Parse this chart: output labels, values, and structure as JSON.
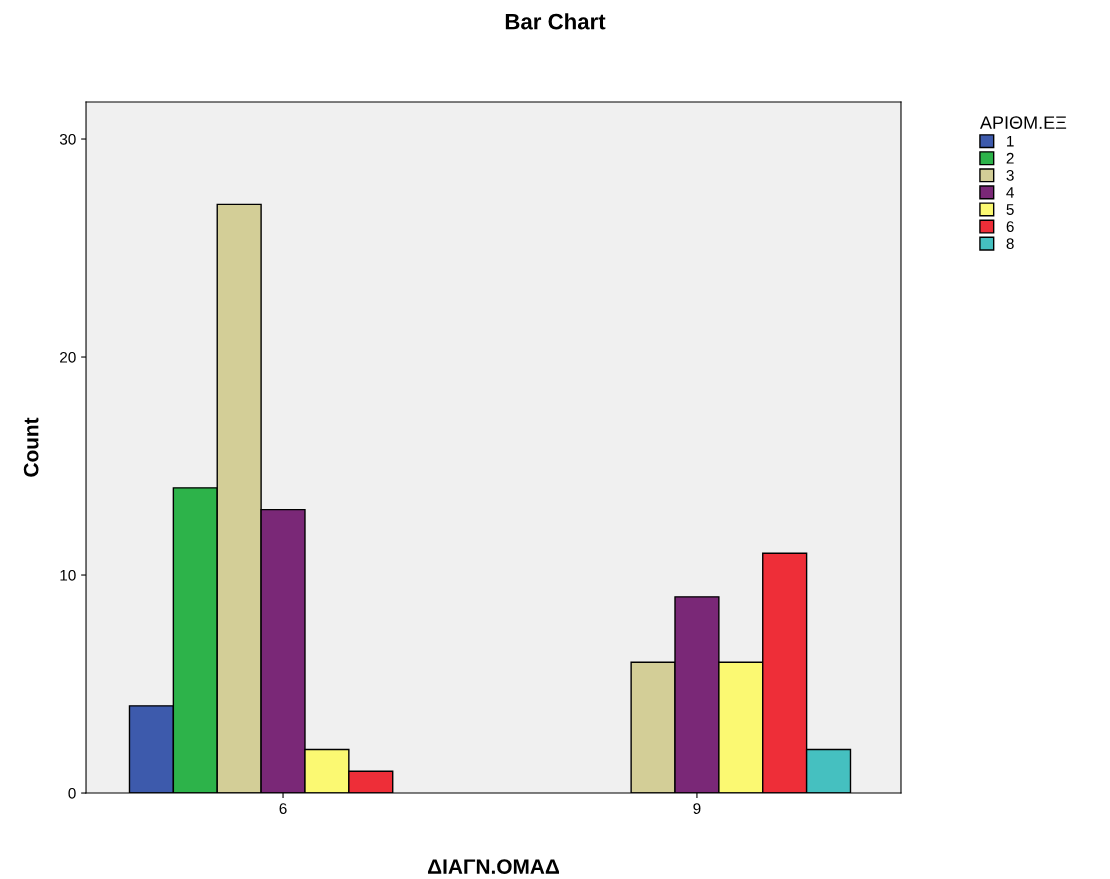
{
  "chart_data": {
    "type": "bar",
    "title": "Bar Chart",
    "xlabel": "ΔΙΑΓΝ.ΟΜΑΔ",
    "ylabel": "Count",
    "legend_title": "ΑΡΙΘΜ.ΕΞ",
    "categories": [
      "6",
      "9"
    ],
    "series": [
      {
        "name": "1",
        "color": "#3d5aac",
        "values": [
          4,
          null
        ]
      },
      {
        "name": "2",
        "color": "#2db34a",
        "values": [
          14,
          null
        ]
      },
      {
        "name": "3",
        "color": "#d3ce97",
        "values": [
          27,
          6
        ]
      },
      {
        "name": "4",
        "color": "#7a2877",
        "values": [
          13,
          9
        ]
      },
      {
        "name": "5",
        "color": "#fbf972",
        "values": [
          2,
          6
        ]
      },
      {
        "name": "6",
        "color": "#ee2e38",
        "values": [
          1,
          11
        ]
      },
      {
        "name": "8",
        "color": "#45c0c0",
        "values": [
          null,
          2
        ]
      }
    ],
    "ylim": [
      0,
      31.7
    ],
    "yticks": [
      0,
      10,
      20,
      30
    ],
    "grid": false,
    "legend": "top right"
  }
}
